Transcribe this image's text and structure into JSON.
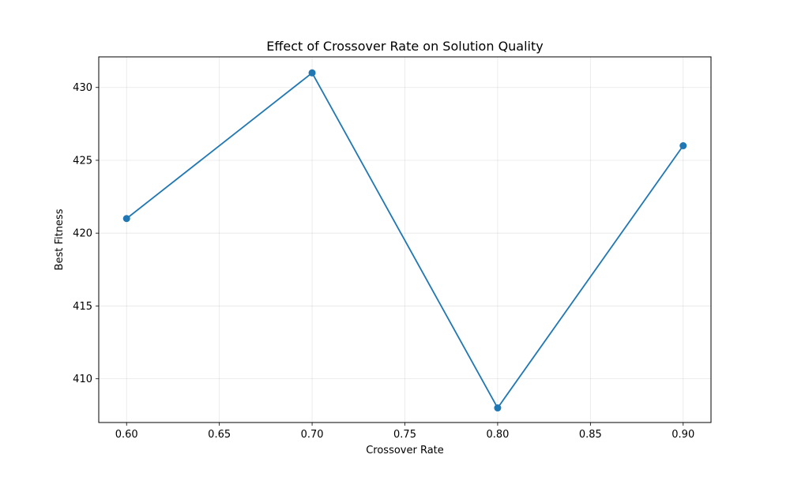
{
  "chart_data": {
    "type": "line",
    "title": "Effect of Crossover Rate on Solution Quality",
    "xlabel": "Crossover Rate",
    "ylabel": "Best Fitness",
    "x": [
      0.6,
      0.7,
      0.8,
      0.9
    ],
    "series": [
      {
        "values": [
          421,
          431,
          408,
          426
        ],
        "color": "#1f77b4",
        "marker": "circle"
      }
    ],
    "xlim": [
      0.585,
      0.915
    ],
    "ylim": [
      407.0,
      432.1
    ],
    "xticks": [
      "0.60",
      "0.65",
      "0.70",
      "0.75",
      "0.80",
      "0.85",
      "0.90"
    ],
    "yticks": [
      "410",
      "415",
      "420",
      "425",
      "430"
    ],
    "grid": true
  }
}
